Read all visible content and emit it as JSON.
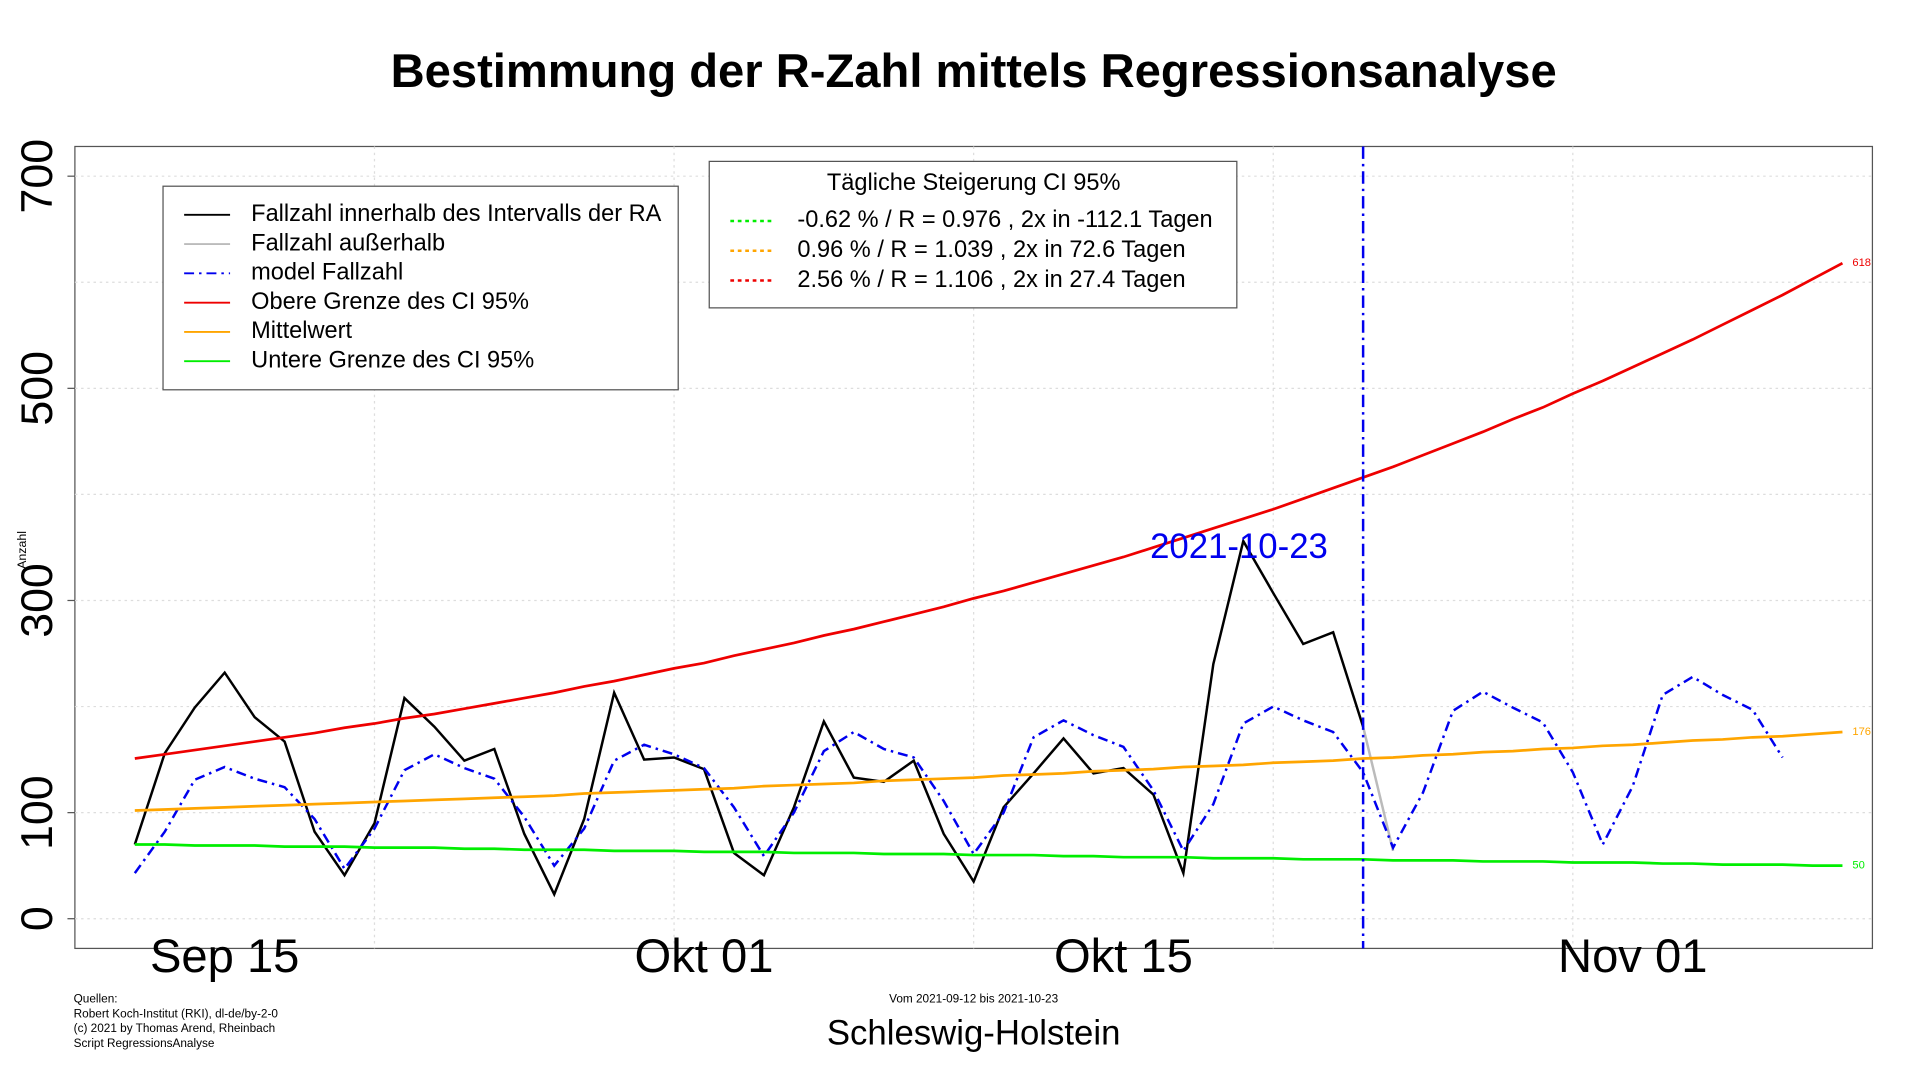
{
  "chart_data": {
    "type": "line",
    "title": "Bestimmung der R-Zahl mittels Regressionsanalyse",
    "y_label": "Anzahl",
    "subtitle": "Schleswig-Holstein",
    "period": "Vom 2021-09-12 bis 2021-10-23",
    "sources": [
      "Quellen:",
      "Robert Koch-Institut (RKI), dl-de/by-2-0",
      "(c) 2021 by Thomas Arend, Rheinbach",
      "Script RegressionsAnalyse"
    ],
    "x": [
      "2021-09-12",
      "2021-09-13",
      "2021-09-14",
      "2021-09-15",
      "2021-09-16",
      "2021-09-17",
      "2021-09-18",
      "2021-09-19",
      "2021-09-20",
      "2021-09-21",
      "2021-09-22",
      "2021-09-23",
      "2021-09-24",
      "2021-09-25",
      "2021-09-26",
      "2021-09-27",
      "2021-09-28",
      "2021-09-29",
      "2021-09-30",
      "2021-10-01",
      "2021-10-02",
      "2021-10-03",
      "2021-10-04",
      "2021-10-05",
      "2021-10-06",
      "2021-10-07",
      "2021-10-08",
      "2021-10-09",
      "2021-10-10",
      "2021-10-11",
      "2021-10-12",
      "2021-10-13",
      "2021-10-14",
      "2021-10-15",
      "2021-10-16",
      "2021-10-17",
      "2021-10-18",
      "2021-10-19",
      "2021-10-20",
      "2021-10-21",
      "2021-10-22",
      "2021-10-23",
      "2021-10-24",
      "2021-10-25",
      "2021-10-26",
      "2021-10-27",
      "2021-10-28",
      "2021-10-29",
      "2021-10-30",
      "2021-10-31",
      "2021-11-01",
      "2021-11-02",
      "2021-11-03",
      "2021-11-04",
      "2021-11-05",
      "2021-11-06",
      "2021-11-07",
      "2021-11-08"
    ],
    "series": [
      {
        "name": "Fallzahl innerhalb des Intervalls der RA",
        "color": "#000000",
        "dash": "solid",
        "values": [
          70,
          156,
          199,
          232,
          190,
          167,
          82,
          41,
          90,
          208,
          181,
          149,
          160,
          80,
          23,
          94,
          213,
          150,
          152,
          141,
          62,
          41,
          105,
          186,
          133,
          129,
          149,
          80,
          35,
          105,
          137,
          170,
          137,
          142,
          117,
          43,
          240,
          356,
          307,
          259,
          270,
          181,
          null,
          null,
          null,
          null,
          null,
          null,
          null,
          null,
          null,
          null,
          null,
          null,
          null,
          null,
          null,
          null
        ]
      },
      {
        "name": "Fallzahl außerhalb",
        "color": "#bbbbbb",
        "dash": "solid",
        "values": [
          null,
          null,
          null,
          null,
          null,
          null,
          null,
          null,
          null,
          null,
          null,
          null,
          null,
          null,
          null,
          null,
          null,
          null,
          null,
          null,
          null,
          null,
          null,
          null,
          null,
          null,
          null,
          null,
          null,
          null,
          null,
          null,
          null,
          null,
          null,
          null,
          null,
          null,
          null,
          null,
          null,
          181,
          64,
          null,
          null,
          null,
          null,
          null,
          null,
          null,
          null,
          null,
          null,
          null,
          null,
          null,
          null,
          null
        ]
      },
      {
        "name": "model Fallzahl",
        "color": "#0000ee",
        "dash": "dashdot",
        "values": [
          43,
          82,
          131,
          143,
          132,
          124,
          94,
          47,
          85,
          140,
          155,
          142,
          132,
          96,
          50,
          85,
          149,
          164,
          155,
          142,
          105,
          59,
          100,
          158,
          176,
          160,
          152,
          111,
          61,
          100,
          171,
          187,
          173,
          162,
          121,
          64,
          108,
          184,
          200,
          187,
          176,
          138,
          67,
          119,
          196,
          214,
          199,
          185,
          138,
          70,
          125,
          211,
          228,
          211,
          197,
          152,
          null,
          null
        ]
      },
      {
        "name": "Obere Grenze des CI 95%",
        "color": "#ee0000",
        "dash": "solid",
        "end_label": "618",
        "values": [
          151,
          155,
          159,
          163,
          167,
          171,
          175,
          180,
          184,
          189,
          193,
          198,
          203,
          208,
          213,
          219,
          224,
          230,
          236,
          241,
          248,
          254,
          260,
          267,
          273,
          280,
          287,
          294,
          302,
          309,
          317,
          325,
          333,
          341,
          350,
          359,
          368,
          377,
          386,
          396,
          406,
          416,
          426,
          437,
          448,
          459,
          471,
          482,
          495,
          507,
          520,
          533,
          546,
          560,
          574,
          588,
          603,
          618
        ]
      },
      {
        "name": "Mittelwert",
        "color": "#ffa500",
        "dash": "solid",
        "end_label": "176",
        "values": [
          102,
          103,
          104,
          105,
          106,
          107,
          108,
          109,
          110,
          111,
          112,
          113,
          114,
          115,
          116,
          118,
          119,
          120,
          121,
          122,
          123,
          125,
          126,
          127,
          128,
          130,
          131,
          132,
          133,
          135,
          136,
          137,
          139,
          140,
          141,
          143,
          144,
          145,
          147,
          148,
          149,
          151,
          152,
          154,
          155,
          157,
          158,
          160,
          161,
          163,
          164,
          166,
          168,
          169,
          171,
          172,
          174,
          176
        ]
      },
      {
        "name": "Untere Grenze des CI 95%",
        "color": "#00ee00",
        "dash": "solid",
        "end_label": "50",
        "values": [
          70,
          70,
          69,
          69,
          69,
          68,
          68,
          68,
          67,
          67,
          67,
          66,
          66,
          65,
          65,
          65,
          64,
          64,
          64,
          63,
          63,
          63,
          62,
          62,
          62,
          61,
          61,
          61,
          60,
          60,
          60,
          59,
          59,
          58,
          58,
          58,
          57,
          57,
          57,
          56,
          56,
          56,
          55,
          55,
          55,
          54,
          54,
          54,
          53,
          53,
          53,
          52,
          52,
          51,
          51,
          51,
          50,
          50
        ]
      }
    ],
    "xlim": [
      "2021-09-10",
      "2021-11-09"
    ],
    "xticks": [
      {
        "value": "2021-09-15",
        "label": "Sep 15"
      },
      {
        "value": "2021-10-01",
        "label": "Okt 01"
      },
      {
        "value": "2021-10-15",
        "label": "Okt 15"
      },
      {
        "value": "2021-11-01",
        "label": "Nov 01"
      }
    ],
    "x_grid": [
      "2021-09-20",
      "2021-09-30",
      "2021-10-10",
      "2021-10-20",
      "2021-10-30"
    ],
    "ylim": [
      -28,
      728
    ],
    "yticks": [
      0,
      100,
      300,
      500,
      700
    ],
    "y_grid": [
      0,
      100,
      200,
      300,
      400,
      500,
      600,
      700
    ],
    "grid": true,
    "vline": {
      "x": "2021-10-23",
      "label": "2021-10-23",
      "color": "#0000ee"
    },
    "legend": "top-left",
    "legend2": {
      "title": "Tägliche Steigerung CI  95%",
      "entries": [
        {
          "text": "-0.62 % / R = 0.976 , 2x in -112.1 Tagen",
          "color": "#00ee00"
        },
        {
          "text": "0.96 % / R = 1.039 , 2x in 72.6 Tagen",
          "color": "#ffa500"
        },
        {
          "text": "2.56 % / R = 1.106 , 2x in 27.4 Tagen",
          "color": "#ee0000"
        }
      ]
    }
  }
}
